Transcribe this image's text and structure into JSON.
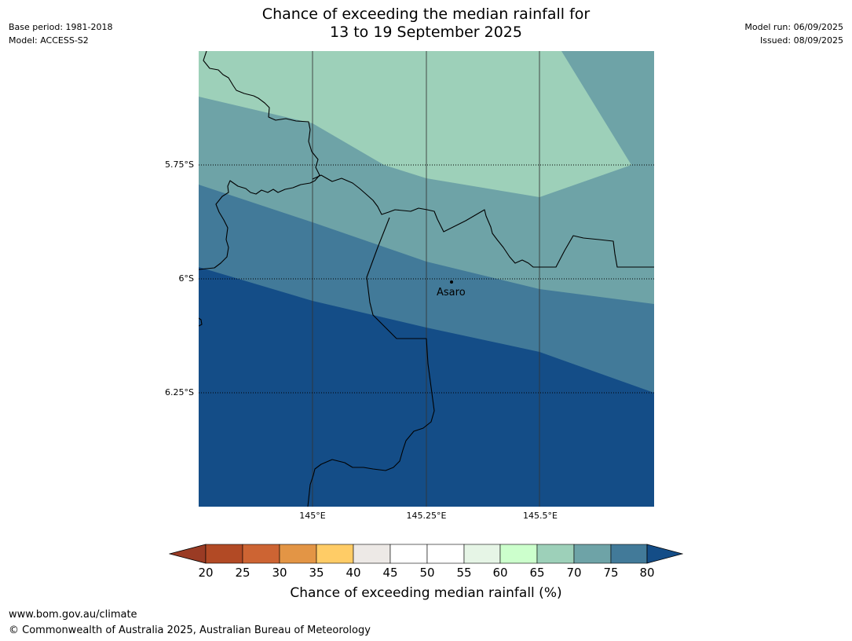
{
  "header": {
    "base_period": "Base period: 1981-2018",
    "model": "Model: ACCESS-S2",
    "title_line1": "Chance of exceeding the median rainfall for",
    "title_line2": "13 to 19 September 2025",
    "model_run": "Model run: 06/09/2025",
    "issued": "Issued: 08/09/2025"
  },
  "map": {
    "lat_labels": [
      "5.75°S",
      "6°S",
      "6.25°S"
    ],
    "lon_labels": [
      "145°E",
      "145.25°E",
      "145.5°E"
    ],
    "place": "Asaro",
    "zone_colors": [
      "#9dd0b9",
      "#6ea3a7",
      "#427a99",
      "#144d87"
    ]
  },
  "colorbar": {
    "ticks": [
      "20",
      "25",
      "30",
      "35",
      "40",
      "45",
      "50",
      "55",
      "60",
      "65",
      "70",
      "75",
      "80"
    ],
    "colors": [
      "#9a3b24",
      "#b24a25",
      "#cd6433",
      "#e39545",
      "#ffcc66",
      "#ede9e6",
      "#ffffff",
      "#ffffff",
      "#e6f5e6",
      "#ccffcc",
      "#9dd0b9",
      "#6ea3a7",
      "#427a99",
      "#144d87"
    ],
    "label": "Chance of exceeding median rainfall (%)"
  },
  "footer": {
    "url": "www.bom.gov.au/climate",
    "copyright": "© Commonwealth of Australia 2025, Australian Bureau of Meteorology"
  }
}
